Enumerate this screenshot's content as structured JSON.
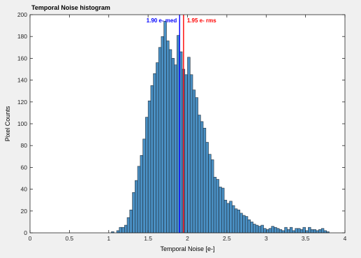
{
  "chart_data": {
    "type": "bar",
    "title": "Temporal Noise histogram",
    "xlabel": "Temporal Noise [e-]",
    "ylabel": "Pixel Counts",
    "xlim": [
      0,
      4
    ],
    "ylim": [
      0,
      200
    ],
    "xticks": [
      "0",
      "0.5",
      "1",
      "1.5",
      "2",
      "2.5",
      "3",
      "3.5",
      "4"
    ],
    "yticks": [
      "0",
      "20",
      "40",
      "60",
      "80",
      "100",
      "120",
      "140",
      "160",
      "180",
      "200"
    ],
    "grid": false,
    "bin_width": 0.0333,
    "series": [
      {
        "bin_centers": [
          1.017,
          1.05,
          1.083,
          1.117,
          1.15,
          1.183,
          1.217,
          1.25,
          1.283,
          1.317,
          1.35,
          1.383,
          1.417,
          1.45,
          1.483,
          1.517,
          1.55,
          1.583,
          1.617,
          1.65,
          1.683,
          1.717,
          1.75,
          1.783,
          1.817,
          1.85,
          1.883,
          1.917,
          1.95,
          1.983,
          2.017,
          2.05,
          2.083,
          2.117,
          2.15,
          2.183,
          2.217,
          2.25,
          2.283,
          2.317,
          2.35,
          2.383,
          2.417,
          2.45,
          2.483,
          2.517,
          2.55,
          2.583,
          2.617,
          2.65,
          2.683,
          2.717,
          2.75,
          2.783,
          2.817,
          2.85,
          2.883,
          2.917,
          2.95,
          2.983,
          3.017,
          3.05,
          3.083,
          3.117,
          3.15,
          3.183,
          3.217,
          3.25,
          3.283,
          3.317,
          3.35,
          3.383,
          3.417,
          3.45,
          3.483,
          3.517,
          3.55,
          3.583,
          3.617,
          3.65,
          3.683,
          3.717,
          3.75,
          3.783
        ],
        "counts": [
          0,
          1,
          0,
          2,
          5,
          5,
          7,
          14,
          21,
          37,
          48,
          61,
          71,
          86,
          106,
          121,
          135,
          146,
          156,
          170,
          180,
          194,
          176,
          168,
          160,
          154,
          181,
          166,
          150,
          145,
          161,
          145,
          131,
          124,
          108,
          102,
          96,
          83,
          72,
          67,
          51,
          49,
          42,
          41,
          30,
          27,
          29,
          25,
          22,
          21,
          18,
          16,
          15,
          12,
          10,
          8,
          7,
          6,
          7,
          4,
          3,
          4,
          6,
          5,
          4,
          3,
          2,
          5,
          3,
          5,
          2,
          4,
          4,
          3,
          5,
          2,
          5,
          3,
          3,
          2,
          3,
          4,
          2,
          1
        ],
        "color": "#4a90c4",
        "edge_color": "#1f2d3a"
      }
    ],
    "annotations": [
      {
        "label": "1.90 e- med",
        "x": 1.9,
        "color": "#0000ff"
      },
      {
        "label": "1.95 e- rms",
        "x": 1.95,
        "color": "#ff0000"
      }
    ]
  }
}
